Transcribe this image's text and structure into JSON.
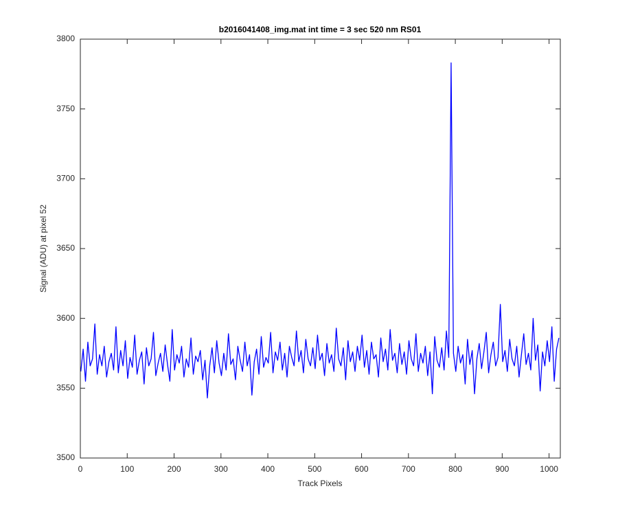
{
  "chart_data": {
    "type": "line",
    "title": "b2016041408_img.mat int time = 3 sec  520 nm RS01",
    "x_label": "Track Pixels",
    "y_label": "Signal (ADU) at pixel 52",
    "xlim": [
      0,
      1024
    ],
    "ylim": [
      3500,
      3800
    ],
    "xticks": [
      0,
      100,
      200,
      300,
      400,
      500,
      600,
      700,
      800,
      900,
      1000
    ],
    "yticks": [
      3500,
      3550,
      3600,
      3650,
      3700,
      3750,
      3800
    ],
    "grid": false,
    "x": [
      1,
      6,
      11,
      16,
      21,
      26,
      31,
      36,
      41,
      46,
      51,
      56,
      61,
      66,
      71,
      76,
      81,
      86,
      91,
      96,
      101,
      106,
      111,
      116,
      121,
      126,
      131,
      136,
      141,
      146,
      151,
      156,
      161,
      166,
      171,
      176,
      181,
      186,
      191,
      196,
      201,
      206,
      211,
      216,
      221,
      226,
      231,
      236,
      241,
      246,
      251,
      256,
      261,
      266,
      271,
      276,
      281,
      286,
      291,
      296,
      301,
      306,
      311,
      316,
      321,
      326,
      331,
      336,
      341,
      346,
      351,
      356,
      361,
      366,
      371,
      376,
      381,
      386,
      391,
      396,
      401,
      406,
      411,
      416,
      421,
      426,
      431,
      436,
      441,
      446,
      451,
      456,
      461,
      466,
      471,
      476,
      481,
      486,
      491,
      496,
      501,
      506,
      511,
      516,
      521,
      526,
      531,
      536,
      541,
      546,
      551,
      556,
      561,
      566,
      571,
      576,
      581,
      586,
      591,
      596,
      601,
      606,
      611,
      616,
      621,
      626,
      631,
      636,
      641,
      646,
      651,
      656,
      661,
      666,
      671,
      676,
      681,
      686,
      691,
      696,
      701,
      706,
      711,
      716,
      721,
      726,
      731,
      736,
      741,
      746,
      751,
      756,
      761,
      766,
      771,
      776,
      781,
      786,
      791,
      796,
      801,
      806,
      811,
      816,
      821,
      826,
      831,
      836,
      841,
      846,
      851,
      856,
      861,
      866,
      871,
      876,
      881,
      886,
      891,
      896,
      901,
      906,
      911,
      916,
      921,
      926,
      931,
      936,
      941,
      946,
      951,
      956,
      961,
      966,
      971,
      976,
      981,
      986,
      991,
      996,
      1001,
      1006,
      1011,
      1016,
      1021
    ],
    "series": [
      {
        "name": "signal",
        "color": "#0000ff",
        "values": [
          3562,
          3578,
          3555,
          3583,
          3566,
          3571,
          3596,
          3560,
          3574,
          3566,
          3580,
          3558,
          3569,
          3575,
          3563,
          3594,
          3561,
          3577,
          3566,
          3584,
          3557,
          3572,
          3565,
          3588,
          3560,
          3570,
          3576,
          3553,
          3579,
          3566,
          3571,
          3590,
          3559,
          3568,
          3575,
          3562,
          3581,
          3567,
          3555,
          3592,
          3563,
          3574,
          3568,
          3580,
          3558,
          3571,
          3565,
          3586,
          3560,
          3573,
          3569,
          3577,
          3556,
          3570,
          3543,
          3566,
          3579,
          3561,
          3584,
          3568,
          3559,
          3575,
          3563,
          3589,
          3567,
          3571,
          3556,
          3580,
          3570,
          3562,
          3583,
          3566,
          3574,
          3545,
          3569,
          3578,
          3560,
          3587,
          3565,
          3572,
          3568,
          3590,
          3561,
          3576,
          3570,
          3583,
          3563,
          3575,
          3558,
          3580,
          3572,
          3566,
          3591,
          3569,
          3577,
          3561,
          3585,
          3571,
          3566,
          3579,
          3564,
          3588,
          3570,
          3575,
          3559,
          3582,
          3568,
          3574,
          3562,
          3593,
          3571,
          3566,
          3579,
          3556,
          3584,
          3569,
          3576,
          3562,
          3580,
          3570,
          3588,
          3565,
          3577,
          3560,
          3583,
          3571,
          3574,
          3558,
          3586,
          3569,
          3578,
          3563,
          3592,
          3570,
          3575,
          3561,
          3582,
          3567,
          3576,
          3560,
          3584,
          3571,
          3566,
          3589,
          3562,
          3575,
          3568,
          3580,
          3559,
          3576,
          3546,
          3587,
          3570,
          3565,
          3579,
          3563,
          3591,
          3572,
          3783,
          3575,
          3562,
          3580,
          3568,
          3574,
          3553,
          3585,
          3567,
          3577,
          3546,
          3571,
          3582,
          3564,
          3576,
          3590,
          3561,
          3574,
          3583,
          3566,
          3572,
          3610,
          3569,
          3577,
          3562,
          3585,
          3571,
          3566,
          3580,
          3558,
          3574,
          3589,
          3567,
          3575,
          3563,
          3600,
          3570,
          3581,
          3548,
          3576,
          3566,
          3584,
          3569,
          3594,
          3555,
          3578,
          3586
        ]
      }
    ]
  }
}
